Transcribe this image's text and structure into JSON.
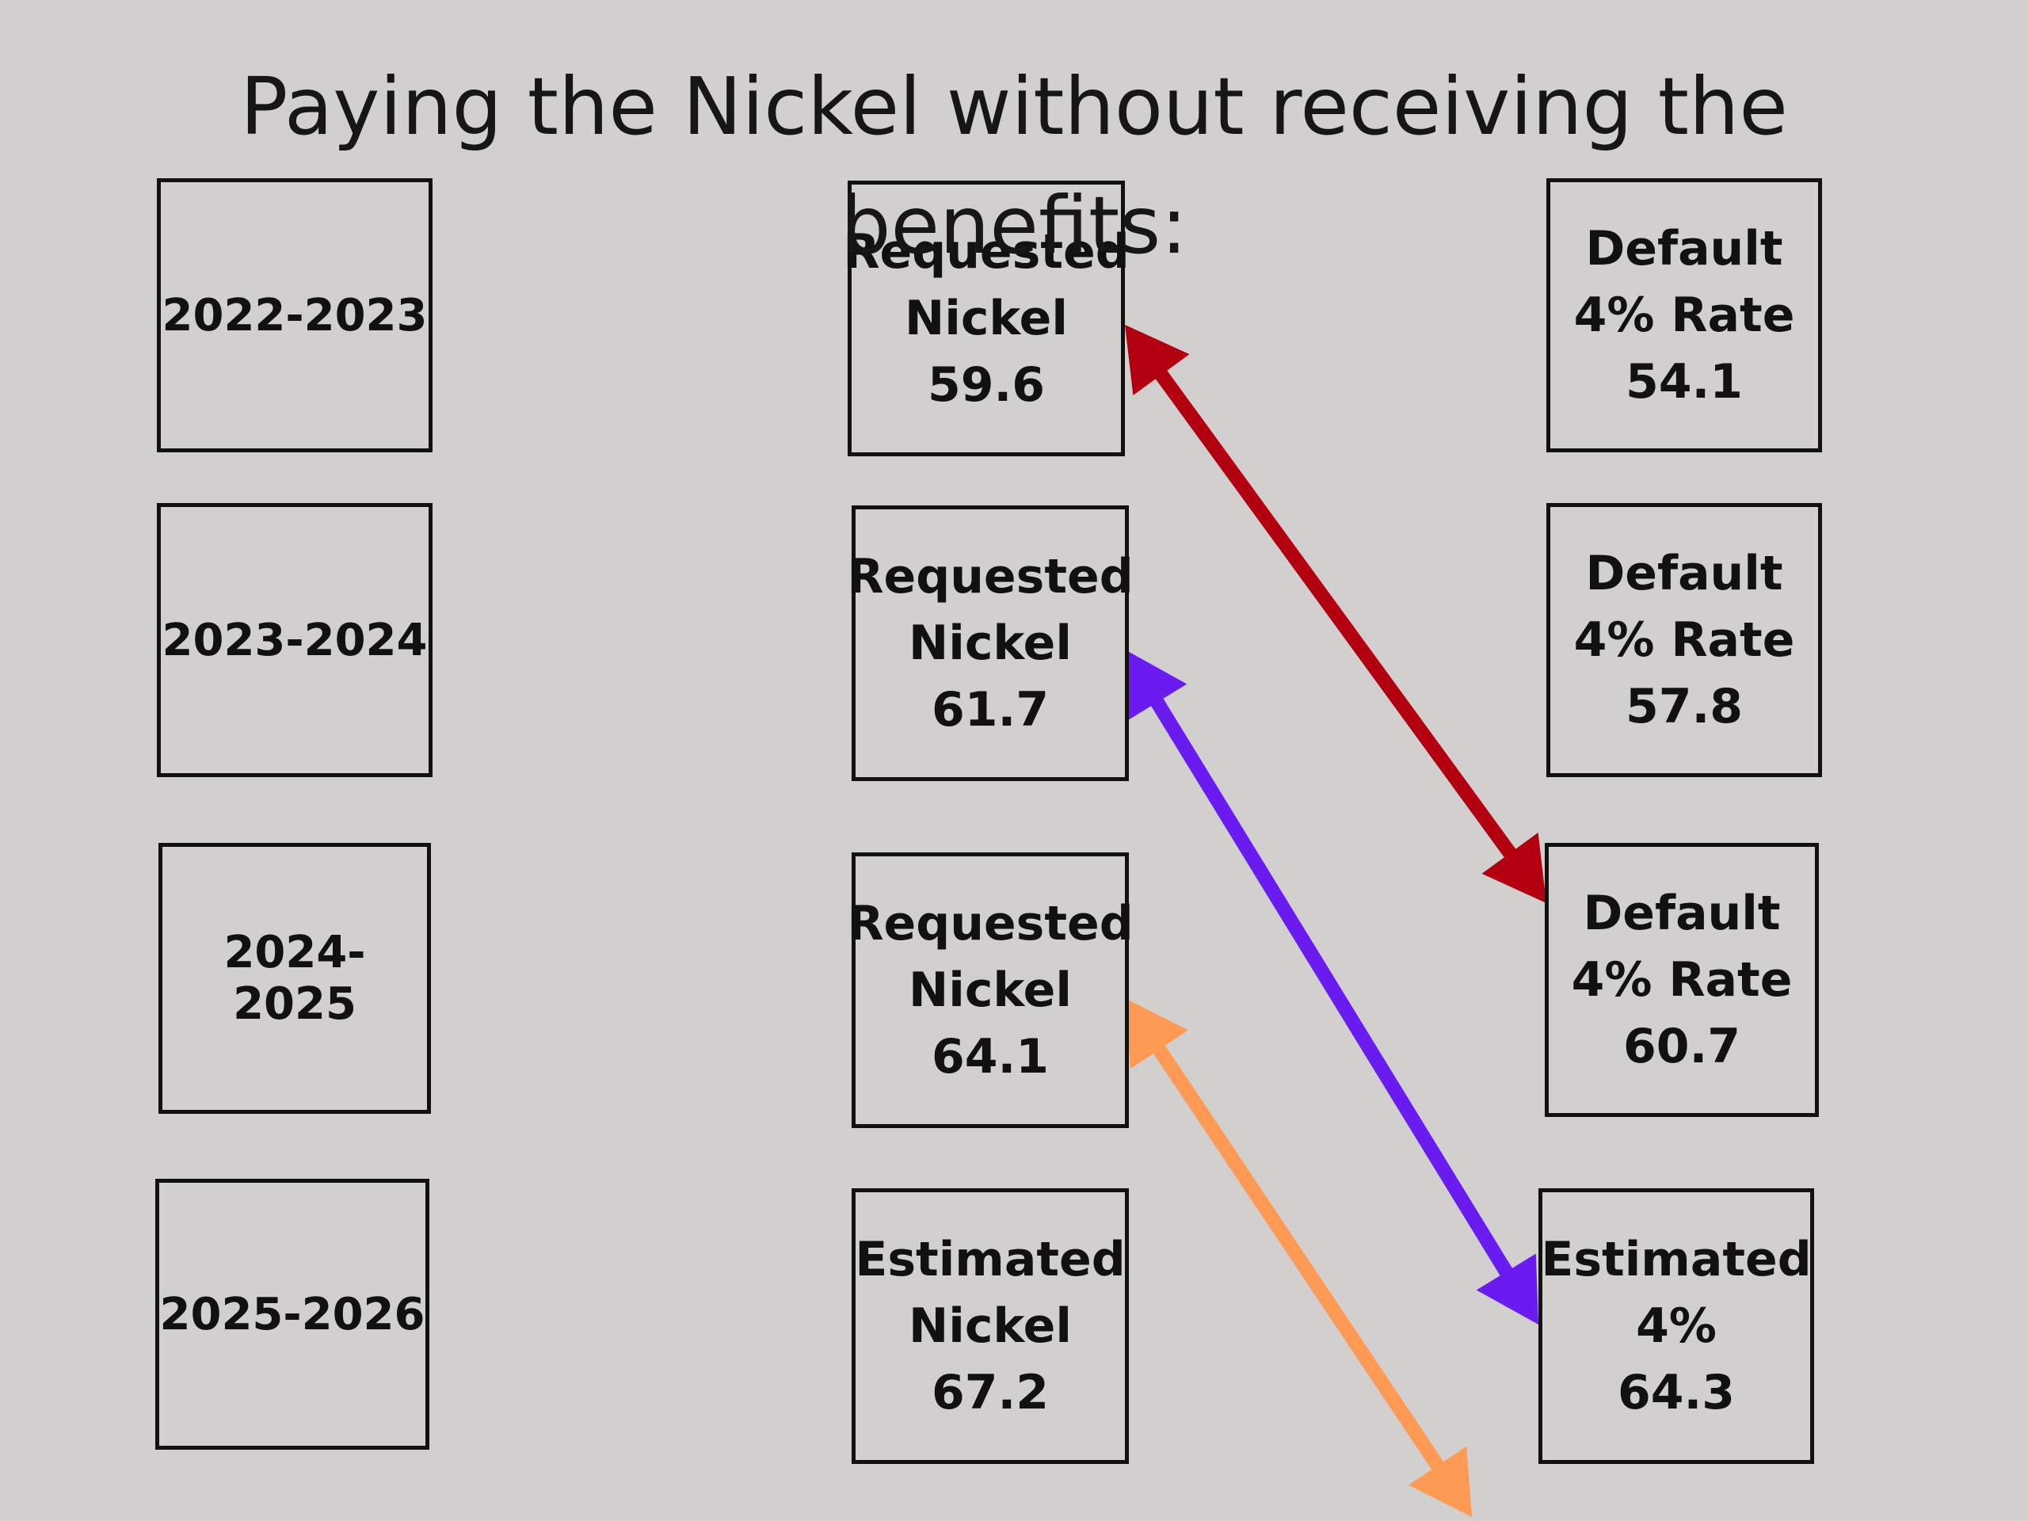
{
  "title": "Paying the Nickel without receiving the benefits:",
  "years": [
    {
      "label": "2022-2023"
    },
    {
      "label": "2023-2024"
    },
    {
      "label": "2024-2025"
    },
    {
      "label": "2025-2026"
    }
  ],
  "nickel": [
    {
      "line1": "Requested",
      "line2": "Nickel",
      "value": "59.6"
    },
    {
      "line1": "Requested",
      "line2": "Nickel",
      "value": "61.7"
    },
    {
      "line1": "Requested",
      "line2": "Nickel",
      "value": "64.1"
    },
    {
      "line1": "Estimated",
      "line2": "Nickel",
      "value": "67.2"
    }
  ],
  "rate": [
    {
      "line1": "Default",
      "line2": "4% Rate",
      "value": "54.1"
    },
    {
      "line1": "Default",
      "line2": "4% Rate",
      "value": "57.8"
    },
    {
      "line1": "Default",
      "line2": "4% Rate",
      "value": "60.7"
    },
    {
      "line1": "Estimated",
      "line2": "4%",
      "value": "64.3"
    }
  ],
  "arrow_colors": {
    "red": "#b30010",
    "purple": "#6a1bf0",
    "orange": "#ff9a55"
  }
}
